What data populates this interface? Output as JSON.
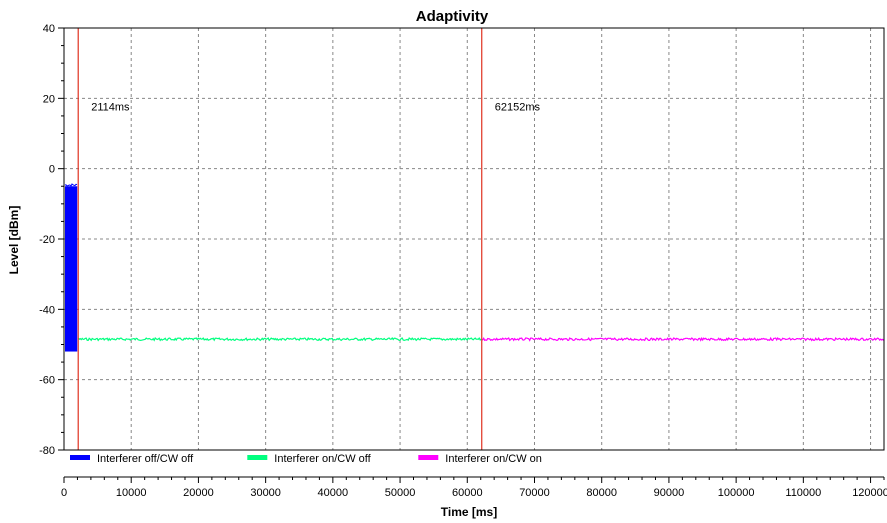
{
  "chart_data": {
    "type": "line",
    "title": "Adaptivity",
    "xlabel": "Time [ms]",
    "ylabel": "Level [dBm]",
    "xlim": [
      0,
      122000
    ],
    "ylim": [
      -80,
      40
    ],
    "x_ticks": [
      0,
      10000,
      20000,
      30000,
      40000,
      50000,
      60000,
      70000,
      80000,
      90000,
      100000,
      110000,
      120000
    ],
    "y_ticks": [
      40,
      20,
      0,
      -20,
      -40,
      -60,
      -80
    ],
    "grid": true,
    "legend_position": "bottom-left",
    "series": [
      {
        "name": "Interferer off/CW off",
        "color": "#0000ff",
        "x_range": [
          0,
          2114
        ],
        "level_range": [
          -52,
          -5
        ]
      },
      {
        "name": "Interferer on/CW off",
        "color": "#00ff7f",
        "x_range": [
          2114,
          62152
        ],
        "level": -48.5
      },
      {
        "name": "Interferer on/CW on",
        "color": "#ff00ff",
        "x_range": [
          62152,
          122000
        ],
        "level": -48.5
      }
    ],
    "markers": [
      {
        "x": 2114,
        "label": "2114ms",
        "color": "#e03020"
      },
      {
        "x": 62152,
        "label": "62152ms",
        "color": "#e03020"
      }
    ]
  }
}
